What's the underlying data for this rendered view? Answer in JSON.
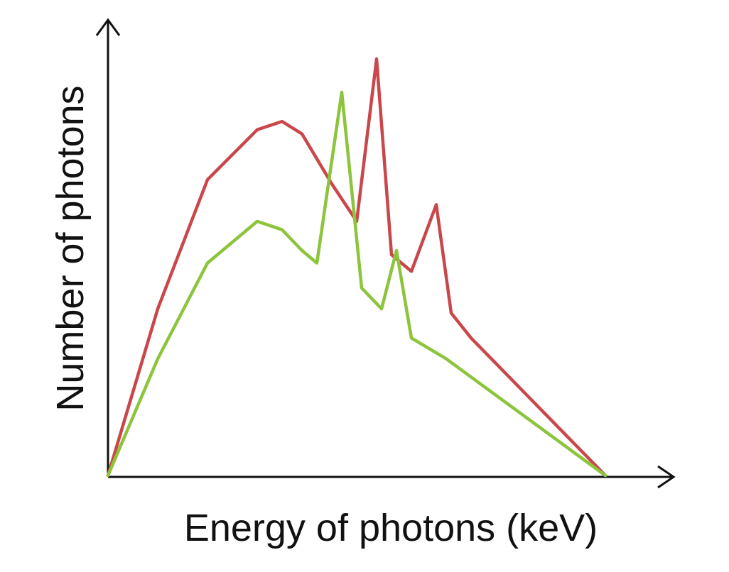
{
  "chart_data": {
    "type": "line",
    "title": "",
    "xlabel": "Energy of photons (keV)",
    "ylabel": "Number of photons",
    "xlim": [
      0,
      100
    ],
    "ylim": [
      0,
      100
    ],
    "grid": false,
    "legend": "none",
    "tick_labels": false,
    "series": [
      {
        "color": "#c9474a",
        "x": [
          0,
          10,
          20,
          30,
          35,
          39,
          45,
          50,
          54,
          57,
          61,
          66,
          69,
          73,
          100
        ],
        "y": [
          0,
          40,
          71,
          83,
          85,
          82,
          70,
          61,
          100,
          53,
          49,
          65,
          39,
          33,
          0
        ]
      },
      {
        "color": "#8cc43c",
        "x": [
          0,
          10,
          20,
          30,
          35,
          39,
          42,
          47,
          51,
          55,
          58,
          61,
          68,
          100
        ],
        "y": [
          0,
          28,
          51,
          61,
          59,
          54,
          51,
          92,
          45,
          40,
          54,
          33,
          28,
          0
        ]
      }
    ]
  }
}
